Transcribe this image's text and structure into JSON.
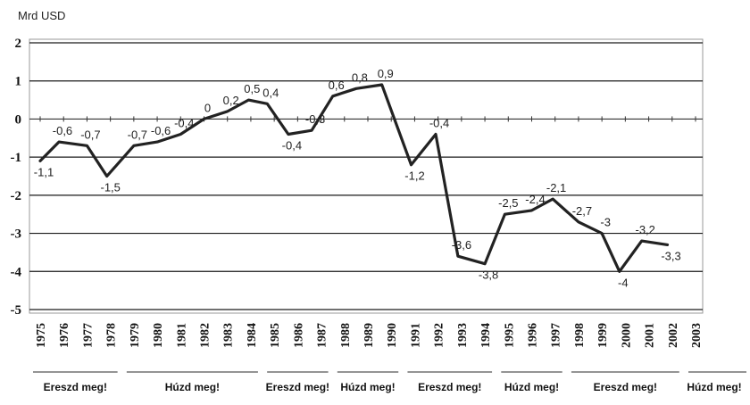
{
  "chart_data": {
    "type": "line",
    "unit_label": "Mrd USD",
    "ylim": [
      -5,
      2
    ],
    "y_ticks": [
      "2",
      "1",
      "0",
      "-1",
      "-2",
      "-3",
      "-4",
      "-5"
    ],
    "grid": "horizontal",
    "x_ticks": [
      "1975",
      "1976",
      "1977",
      "1978",
      "1979",
      "1980",
      "1981",
      "1982",
      "1983",
      "1984",
      "1985",
      "1986",
      "1987",
      "1988",
      "1989",
      "1990",
      "1991",
      "1992",
      "1993",
      "1994",
      "1995",
      "1996",
      "1997",
      "1998",
      "1999",
      "2000",
      "2001",
      "2002",
      "2003"
    ],
    "series": [
      {
        "color": "#222222",
        "points": [
          {
            "x": 1975.0,
            "y": -1.1,
            "label": "-1,1"
          },
          {
            "x": 1975.8,
            "y": -0.6,
            "label": "-0,6"
          },
          {
            "x": 1977.0,
            "y": -0.7,
            "label": "-0,7"
          },
          {
            "x": 1977.85,
            "y": -1.5,
            "label": "-1,5"
          },
          {
            "x": 1979.0,
            "y": -0.7,
            "label": "-0,7"
          },
          {
            "x": 1980.0,
            "y": -0.6,
            "label": "-0,6"
          },
          {
            "x": 1981.0,
            "y": -0.4,
            "label": "-0,4"
          },
          {
            "x": 1982.0,
            "y": 0.0,
            "label": "0"
          },
          {
            "x": 1983.0,
            "y": 0.2,
            "label": "0,2"
          },
          {
            "x": 1983.9,
            "y": 0.5,
            "label": "0,5"
          },
          {
            "x": 1984.7,
            "y": 0.4,
            "label": "0,4"
          },
          {
            "x": 1985.6,
            "y": -0.4,
            "label": "-0,4"
          },
          {
            "x": 1986.6,
            "y": -0.3,
            "label": "-0,3"
          },
          {
            "x": 1987.5,
            "y": 0.6,
            "label": "0,6"
          },
          {
            "x": 1988.5,
            "y": 0.8,
            "label": "0,8"
          },
          {
            "x": 1989.6,
            "y": 0.9,
            "label": "0,9"
          },
          {
            "x": 1990.85,
            "y": -1.2,
            "label": "-1,2"
          },
          {
            "x": 1991.9,
            "y": -0.4,
            "label": "-0,4"
          },
          {
            "x": 1992.85,
            "y": -3.6,
            "label": "-3,6"
          },
          {
            "x": 1994.0,
            "y": -3.8,
            "label": "-3,8"
          },
          {
            "x": 1994.85,
            "y": -2.5,
            "label": "-2,5"
          },
          {
            "x": 1996.0,
            "y": -2.4,
            "label": "-2,4"
          },
          {
            "x": 1996.9,
            "y": -2.1,
            "label": "-2,1"
          },
          {
            "x": 1998.0,
            "y": -2.7,
            "label": "-2,7"
          },
          {
            "x": 1999.0,
            "y": -3.0,
            "label": "-3"
          },
          {
            "x": 1999.75,
            "y": -4.0,
            "label": "-4"
          },
          {
            "x": 2000.7,
            "y": -3.2,
            "label": "-3,2"
          },
          {
            "x": 2001.8,
            "y": -3.3,
            "label": "-3,3"
          }
        ]
      }
    ],
    "phases": [
      {
        "label": "Ereszd meg!",
        "from": "1975",
        "to": "1978"
      },
      {
        "label": "Húzd meg!",
        "from": "1979",
        "to": "1984"
      },
      {
        "label": "Ereszd meg!",
        "from": "1985",
        "to": "1987"
      },
      {
        "label": "Húzd meg!",
        "from": "1988",
        "to": "1990"
      },
      {
        "label": "Ereszd meg!",
        "from": "1991",
        "to": "1994"
      },
      {
        "label": "Húzd meg!",
        "from": "1995",
        "to": "1997"
      },
      {
        "label": "Ereszd meg!",
        "from": "1998",
        "to": "2002"
      },
      {
        "label": "Húzd meg!",
        "from": "2003",
        "to": "2003"
      }
    ]
  }
}
